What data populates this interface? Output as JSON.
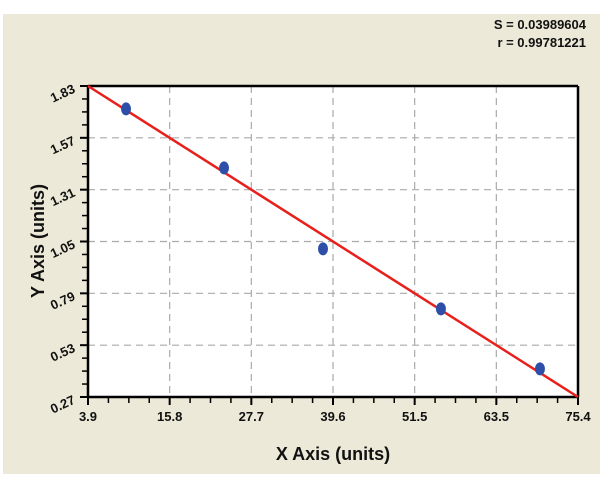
{
  "chart_data": {
    "type": "scatter",
    "title": "",
    "xlabel": "X Axis (units)",
    "ylabel": "Y Axis (units)",
    "xlim": [
      3.9,
      75.4
    ],
    "ylim": [
      0.27,
      1.83
    ],
    "x_ticks": [
      "3.9",
      "15.8",
      "27.7",
      "39.6",
      "51.5",
      "63.5",
      "75.4"
    ],
    "y_ticks": [
      "0.27",
      "0.53",
      "0.79",
      "1.05",
      "1.31",
      "1.57",
      "1.83"
    ],
    "grid": true,
    "legend": null,
    "annotations": [
      "S = 0.03989604",
      "r = 0.99781221"
    ],
    "series": [
      {
        "name": "data points",
        "type": "scatter",
        "color": "#2e4fa8",
        "x": [
          9.45,
          23.75,
          38.19,
          55.4,
          69.85
        ],
        "y": [
          1.715,
          1.419,
          1.013,
          0.712,
          0.411
        ]
      },
      {
        "name": "fit line",
        "type": "line",
        "color": "#e8201c",
        "x": [
          3.9,
          75.4
        ],
        "y": [
          1.83,
          0.27
        ]
      }
    ]
  },
  "stats": {
    "s_label": "S = 0.03989604",
    "r_label": "r = 0.99781221"
  },
  "colors": {
    "background": "#ece9d8",
    "plot_background": "#ffffff",
    "grid": "#aaaaaa",
    "fit_line": "#e8201c",
    "points": "#2e4fa8"
  }
}
